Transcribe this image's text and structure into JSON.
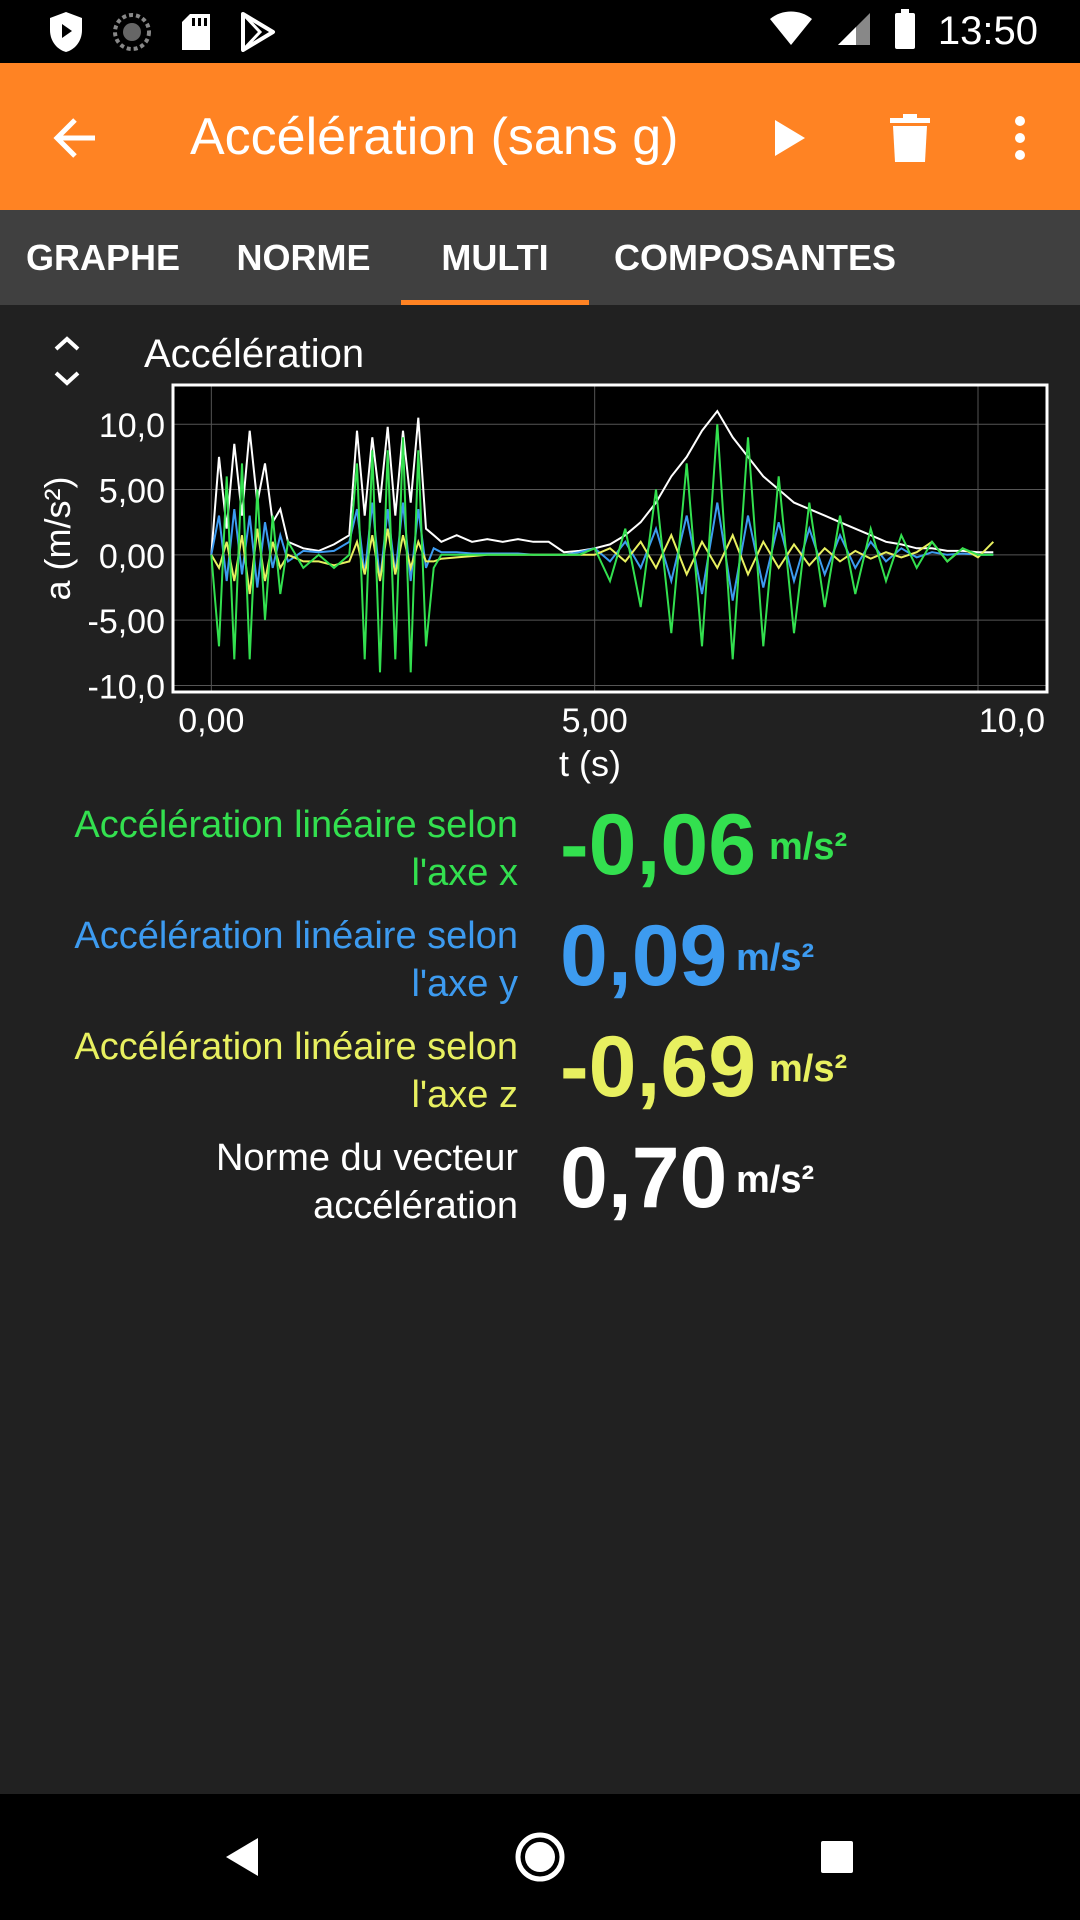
{
  "status_bar": {
    "time": "13:50",
    "left_icons": [
      "shield-icon",
      "sync-icon",
      "sd-card-icon",
      "play-store-icon"
    ],
    "right_icons": [
      "wifi-icon",
      "signal-icon",
      "battery-icon"
    ]
  },
  "app_bar": {
    "title": "Accélération (sans g)",
    "color": "#FF8323"
  },
  "tabs": [
    {
      "label": "GRAPHE",
      "active": false
    },
    {
      "label": "NORME",
      "active": false
    },
    {
      "label": "MULTI",
      "active": true
    },
    {
      "label": "COMPOSANTES",
      "active": false
    }
  ],
  "graph": {
    "title": "Accélération"
  },
  "chart_data": {
    "type": "line",
    "title": "Accélération",
    "xlabel": "t (s)",
    "ylabel": "a (m/s²)",
    "xlim": [
      -0.5,
      10.9
    ],
    "ylim": [
      -10.5,
      13
    ],
    "x_ticks": [
      0,
      5,
      10
    ],
    "x_tick_labels": [
      "0,00",
      "5,00",
      "10,0"
    ],
    "y_ticks": [
      10,
      5,
      0,
      -5,
      -10
    ],
    "y_tick_labels": [
      "10,0",
      "5,00",
      "0,00",
      "-5,00",
      "-10,0"
    ],
    "grid": true,
    "series": [
      {
        "color": "#FFFFFF",
        "x": [
          0.0,
          0.1,
          0.2,
          0.3,
          0.4,
          0.5,
          0.6,
          0.7,
          0.8,
          0.9,
          1.0,
          1.2,
          1.4,
          1.6,
          1.8,
          1.9,
          2.0,
          2.1,
          2.2,
          2.3,
          2.4,
          2.5,
          2.6,
          2.7,
          2.8,
          2.9,
          3.0,
          3.2,
          3.4,
          3.6,
          3.8,
          4.0,
          4.2,
          4.4,
          4.6,
          4.8,
          5.0,
          5.2,
          5.4,
          5.6,
          5.8,
          6.0,
          6.2,
          6.4,
          6.6,
          6.8,
          7.0,
          7.2,
          7.4,
          7.6,
          7.8,
          8.0,
          8.2,
          8.4,
          8.6,
          8.8,
          9.0,
          9.2,
          9.4,
          9.6,
          9.8,
          10.0,
          10.2
        ],
        "y": [
          0,
          7.5,
          2,
          8.5,
          3,
          9.5,
          4,
          7,
          2.5,
          3.5,
          1,
          0.5,
          0.3,
          0.8,
          1.5,
          9.5,
          3,
          9,
          4,
          9.8,
          3,
          9.5,
          4,
          10.5,
          2,
          1.5,
          1,
          1.5,
          1,
          1.2,
          1,
          1.2,
          1,
          1,
          0.2,
          0.3,
          0.5,
          0.8,
          1.5,
          2.5,
          4,
          6,
          7.5,
          9.5,
          11,
          9,
          7.5,
          6,
          5,
          4,
          3.5,
          3,
          2.5,
          2,
          1.5,
          1,
          0.8,
          0.5,
          0.5,
          0.3,
          0.3,
          0.2,
          0.2
        ]
      },
      {
        "color": "#3D9BF0",
        "x": [
          0.0,
          0.1,
          0.2,
          0.3,
          0.4,
          0.5,
          0.6,
          0.7,
          0.8,
          0.9,
          1.0,
          1.2,
          1.4,
          1.6,
          1.8,
          1.9,
          2.0,
          2.1,
          2.2,
          2.3,
          2.4,
          2.5,
          2.6,
          2.7,
          2.8,
          2.9,
          3.0,
          3.2,
          3.4,
          3.6,
          3.8,
          4.0,
          4.2,
          4.4,
          4.6,
          4.8,
          5.0,
          5.2,
          5.4,
          5.6,
          5.8,
          6.0,
          6.2,
          6.4,
          6.6,
          6.8,
          7.0,
          7.2,
          7.4,
          7.6,
          7.8,
          8.0,
          8.2,
          8.4,
          8.6,
          8.8,
          9.0,
          9.2,
          9.4,
          9.6,
          9.8,
          10.0,
          10.2
        ],
        "y": [
          0,
          3,
          -2,
          3.5,
          -1.5,
          3,
          -2.5,
          2.5,
          -1,
          1.5,
          -0.5,
          0.3,
          0.2,
          0.3,
          1,
          3.5,
          -1.5,
          4,
          -2,
          3.5,
          -1.5,
          4,
          -2,
          3.5,
          -1,
          0.5,
          0.2,
          0.2,
          0.1,
          0.1,
          0.1,
          0.1,
          0,
          0,
          0,
          0.2,
          0.5,
          -0.5,
          1,
          -1,
          2,
          -2,
          3,
          -3,
          4,
          -3.5,
          3,
          -2.5,
          2.5,
          -2,
          2,
          -1.5,
          1.5,
          -1,
          1,
          -0.5,
          0.5,
          -0.2,
          0.2,
          0,
          0.1,
          0,
          0
        ]
      },
      {
        "color": "#E8F060",
        "x": [
          0.0,
          0.1,
          0.2,
          0.3,
          0.4,
          0.5,
          0.6,
          0.7,
          0.8,
          0.9,
          1.0,
          1.2,
          1.4,
          1.6,
          1.8,
          1.9,
          2.0,
          2.1,
          2.2,
          2.3,
          2.4,
          2.5,
          2.6,
          2.7,
          2.8,
          2.9,
          3.0,
          3.2,
          3.4,
          3.6,
          3.8,
          4.0,
          4.2,
          4.4,
          4.6,
          4.8,
          5.0,
          5.2,
          5.4,
          5.6,
          5.8,
          6.0,
          6.2,
          6.4,
          6.6,
          6.8,
          7.0,
          7.2,
          7.4,
          7.6,
          7.8,
          8.0,
          8.2,
          8.4,
          8.6,
          8.8,
          9.0,
          9.2,
          9.4,
          9.6,
          9.8,
          10.0,
          10.2
        ],
        "y": [
          0,
          -1,
          1,
          -2,
          1.5,
          -3,
          2,
          -2,
          1,
          -1,
          0,
          -0.5,
          -0.5,
          -0.8,
          -0.5,
          1,
          -1.5,
          1.5,
          -2,
          2,
          -1.5,
          1.5,
          -1,
          1,
          -0.5,
          -0.5,
          -0.3,
          -0.2,
          -0.1,
          0,
          0,
          0,
          0,
          0,
          0,
          0,
          0,
          0.5,
          -0.5,
          1,
          -1,
          1.5,
          -1.5,
          1,
          -1,
          1.5,
          -1.5,
          1,
          -1,
          0.8,
          -0.8,
          0.5,
          -0.5,
          0.3,
          -0.3,
          0.2,
          -0.2,
          0.2,
          1,
          -0.5,
          0.5,
          -0.2,
          1
        ]
      },
      {
        "color": "#33E04F",
        "x": [
          0.0,
          0.1,
          0.2,
          0.3,
          0.4,
          0.5,
          0.6,
          0.7,
          0.8,
          0.9,
          1.0,
          1.2,
          1.4,
          1.6,
          1.8,
          1.9,
          2.0,
          2.1,
          2.2,
          2.3,
          2.4,
          2.5,
          2.6,
          2.7,
          2.8,
          2.9,
          3.0,
          3.2,
          3.4,
          3.6,
          3.8,
          4.0,
          4.2,
          4.4,
          4.6,
          4.8,
          5.0,
          5.2,
          5.4,
          5.6,
          5.8,
          6.0,
          6.2,
          6.4,
          6.6,
          6.8,
          7.0,
          7.2,
          7.4,
          7.6,
          7.8,
          8.0,
          8.2,
          8.4,
          8.6,
          8.8,
          9.0,
          9.2,
          9.4,
          9.6,
          9.8,
          10.0,
          10.2
        ],
        "y": [
          0,
          -7,
          6,
          -8,
          7,
          -8,
          5,
          -5,
          3,
          -3,
          1,
          -1,
          0,
          -1,
          0,
          7,
          -8,
          8,
          -9,
          8,
          -8,
          9,
          -9,
          8,
          -7,
          -1,
          0,
          0,
          0,
          0,
          0,
          0,
          0,
          0,
          0,
          0,
          0.5,
          -2,
          2,
          -4,
          5,
          -6,
          7,
          -7,
          10,
          -8,
          9,
          -7,
          6,
          -6,
          4,
          -4,
          3,
          -3,
          2,
          -2,
          1.5,
          -1,
          1,
          -0.5,
          0.5,
          0,
          0
        ]
      }
    ]
  },
  "readouts": [
    {
      "label_line1": "Accélération linéaire selon",
      "label_line2": "l'axe x",
      "value": "-0,06",
      "unit": "m/s²",
      "color": "#33E04F"
    },
    {
      "label_line1": "Accélération linéaire selon",
      "label_line2": "l'axe y",
      "value": "0,09",
      "unit": "m/s²",
      "color": "#3D9BF0"
    },
    {
      "label_line1": "Accélération linéaire selon",
      "label_line2": "l'axe z",
      "value": "-0,69",
      "unit": "m/s²",
      "color": "#E8F060"
    },
    {
      "label_line1": "Norme du vecteur",
      "label_line2": "accélération",
      "value": "0,70",
      "unit": "m/s²",
      "color": "#FFFFFF"
    }
  ],
  "nav_bar": {
    "icons": [
      "back-triangle-icon",
      "home-circle-icon",
      "recents-square-icon"
    ]
  }
}
